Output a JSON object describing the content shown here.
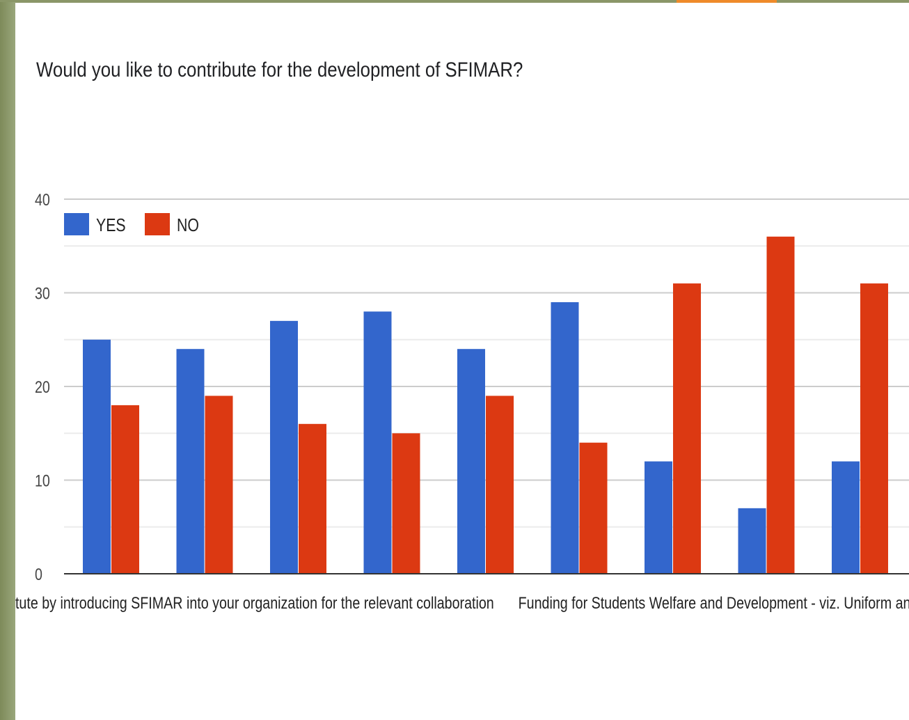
{
  "chart_data": {
    "type": "bar",
    "title": "Would you like to contribute for the development of SFIMAR?",
    "categories": [
      "",
      "stitute by introducing SFIMAR into your organization for the relevant collaboration",
      "",
      "",
      "",
      "",
      "Funding for Students Welfare and Development - viz. Uniform and",
      "",
      ""
    ],
    "series": [
      {
        "name": "YES",
        "color": "#3366cc",
        "values": [
          25,
          24,
          27,
          28,
          24,
          29,
          12,
          7,
          12
        ]
      },
      {
        "name": "NO",
        "color": "#dc3912",
        "values": [
          18,
          19,
          16,
          15,
          19,
          14,
          31,
          36,
          31
        ]
      }
    ],
    "ylim": [
      0,
      40
    ],
    "yticks": [
      0,
      10,
      20,
      30,
      40
    ],
    "grid": true,
    "legend_position": "top-left"
  },
  "colors": {
    "frame": "#8a9668",
    "accent": "#ef8a2a",
    "gridline": "#cccccc",
    "axis": "#333333"
  }
}
